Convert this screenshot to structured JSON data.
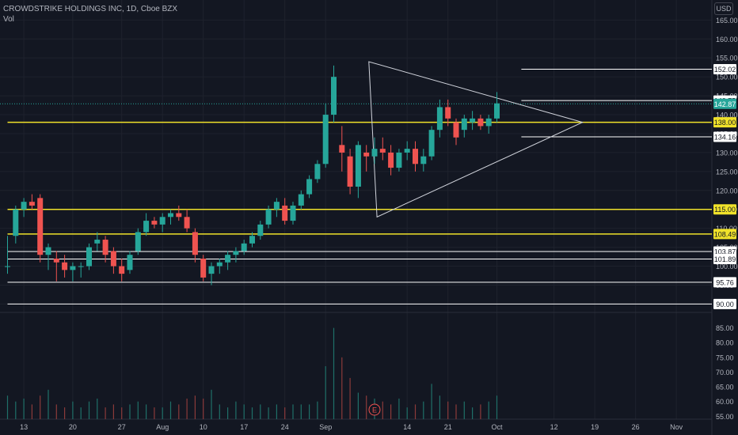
{
  "header": {
    "symbol_line": "CROWDSTRIKE HOLDINGS INC, 1D, Cboe BZX",
    "volume_label": "Vol",
    "currency": "USD"
  },
  "colors": {
    "background": "#131722",
    "up": "#26a69a",
    "down": "#ef5350",
    "yellow_level": "#f0e22a",
    "white_level": "#ffffff",
    "grid": "#1e222d",
    "axis_text": "#b2b5be",
    "current_price_tag": "#26a69a"
  },
  "chart_data": {
    "type": "candlestick",
    "title": "CROWDSTRIKE HOLDINGS INC, 1D, Cboe BZX",
    "price_axis": {
      "ticks": [
        165,
        160,
        155,
        150,
        145,
        140,
        135,
        130,
        125,
        120,
        115,
        110,
        105,
        100,
        95,
        90
      ],
      "tick_labels": [
        "165.00",
        "160.00",
        "155.00",
        "150.00",
        "145.00",
        "140.00",
        "135.00",
        "130.00",
        "125.00",
        "120.00",
        "115.00",
        "110.00",
        "105.00",
        "100.00",
        "95.00",
        "90.00"
      ],
      "range": [
        88,
        168
      ]
    },
    "volume_axis": {
      "ticks": [
        85,
        80,
        75,
        70,
        65,
        60,
        55
      ],
      "tick_labels": [
        "85.00",
        "80.00",
        "75.00",
        "70.00",
        "65.00",
        "60.00",
        "55.00"
      ],
      "range": [
        54,
        90
      ]
    },
    "x_axis": {
      "labels": [
        "13",
        "20",
        "27",
        "Aug",
        "10",
        "17",
        "24",
        "Sep",
        "14",
        "21",
        "Oct",
        "12",
        "19",
        "26",
        "Nov"
      ],
      "label_bar_index": [
        2,
        8,
        14,
        19,
        24,
        29,
        34,
        39,
        49,
        54,
        60,
        67,
        72,
        77,
        82
      ]
    },
    "candles": [
      [
        100,
        108,
        98,
        100
      ],
      [
        108,
        116,
        106,
        115
      ],
      [
        115,
        118,
        113,
        117
      ],
      [
        117,
        119,
        115,
        116
      ],
      [
        118,
        119,
        101,
        103
      ],
      [
        103,
        106,
        99,
        105
      ],
      [
        102,
        104,
        96,
        101
      ],
      [
        101,
        103,
        97,
        99
      ],
      [
        99,
        101,
        96,
        100
      ],
      [
        100,
        101,
        97,
        100
      ],
      [
        100,
        106,
        99,
        105
      ],
      [
        106,
        109,
        104,
        107
      ],
      [
        107,
        108,
        101,
        103
      ],
      [
        104,
        105,
        98,
        100
      ],
      [
        100,
        102,
        96,
        98
      ],
      [
        99,
        104,
        98,
        103
      ],
      [
        104,
        110,
        103,
        109
      ],
      [
        109,
        114,
        108,
        112
      ],
      [
        112,
        113,
        110,
        111
      ],
      [
        111,
        114,
        109,
        113
      ],
      [
        113,
        115,
        111,
        114
      ],
      [
        114,
        116,
        112,
        113
      ],
      [
        113,
        115,
        109,
        110
      ],
      [
        109,
        110,
        101,
        103
      ],
      [
        102,
        103,
        96,
        97
      ],
      [
        98,
        101,
        95,
        100
      ],
      [
        100,
        102,
        98,
        101
      ],
      [
        101,
        104,
        99,
        103
      ],
      [
        103,
        105,
        101,
        104
      ],
      [
        104,
        107,
        103,
        106
      ],
      [
        106,
        109,
        105,
        108
      ],
      [
        108,
        112,
        107,
        111
      ],
      [
        111,
        116,
        110,
        115
      ],
      [
        115,
        118,
        113,
        117
      ],
      [
        116,
        118,
        111,
        112
      ],
      [
        112,
        117,
        111,
        116
      ],
      [
        116,
        120,
        115,
        119
      ],
      [
        119,
        124,
        118,
        123
      ],
      [
        123,
        128,
        122,
        127
      ],
      [
        127,
        143,
        126,
        140
      ],
      [
        140,
        153,
        138,
        150
      ],
      [
        132,
        137,
        125,
        130
      ],
      [
        129,
        131,
        119,
        121
      ],
      [
        121,
        133,
        118,
        132
      ],
      [
        130,
        132,
        125,
        129
      ],
      [
        129,
        134,
        127,
        131
      ],
      [
        131,
        134,
        128,
        130
      ],
      [
        130,
        132,
        124,
        126
      ],
      [
        126,
        131,
        125,
        130
      ],
      [
        130,
        133,
        128,
        131
      ],
      [
        131,
        133,
        125,
        127
      ],
      [
        127,
        131,
        125,
        129
      ],
      [
        129,
        137,
        128,
        136
      ],
      [
        136,
        144,
        134,
        142
      ],
      [
        142,
        144,
        137,
        139
      ],
      [
        138,
        139,
        132,
        134
      ],
      [
        136,
        140,
        134,
        139
      ],
      [
        138,
        141,
        136,
        139
      ],
      [
        139,
        140,
        136,
        137
      ],
      [
        137,
        140,
        135,
        139
      ],
      [
        139,
        146,
        138,
        143
      ]
    ],
    "volume": [
      62,
      60,
      61,
      59,
      62,
      64,
      59,
      58,
      60,
      58,
      60,
      61,
      58,
      59,
      58,
      59,
      60,
      59,
      58,
      58,
      60,
      59,
      61,
      62,
      61,
      64,
      59,
      58,
      60,
      59,
      58,
      59,
      58,
      59,
      58,
      59,
      59,
      59,
      60,
      72,
      85,
      75,
      68,
      63,
      62,
      61,
      60,
      59,
      61,
      58,
      59,
      60,
      66,
      62,
      60,
      59,
      60,
      58,
      59,
      60,
      62
    ],
    "horizontal_levels": [
      {
        "price": 152.02,
        "label": "152.02",
        "color": "white",
        "from_bar": 63
      },
      {
        "price": 143.75,
        "label": "143.75",
        "color": "white",
        "from_bar": 63
      },
      {
        "price": 138.0,
        "label": "138.00",
        "color": "yellow",
        "from_bar": 0
      },
      {
        "price": 134.16,
        "label": "134.16",
        "color": "white",
        "from_bar": 63
      },
      {
        "price": 115.0,
        "label": "115.00",
        "color": "yellow",
        "from_bar": 0
      },
      {
        "price": 108.49,
        "label": "108.49",
        "color": "yellow",
        "from_bar": 0
      },
      {
        "price": 103.87,
        "label": "103.87",
        "color": "white",
        "from_bar": 0
      },
      {
        "price": 101.89,
        "label": "101.89",
        "color": "white",
        "from_bar": 0
      },
      {
        "price": 95.76,
        "label": "95.76",
        "color": "white",
        "from_bar": 0
      },
      {
        "price": 90.0,
        "label": "90.00",
        "color": "white",
        "from_bar": 0
      }
    ],
    "current_price": {
      "price": 142.87,
      "label": "142.87"
    },
    "triangle": [
      [
        44.3,
        154.0
      ],
      [
        45.3,
        113.0
      ],
      [
        70.5,
        138.0
      ]
    ],
    "earnings_marker": {
      "label": "E",
      "bar": 45
    }
  }
}
